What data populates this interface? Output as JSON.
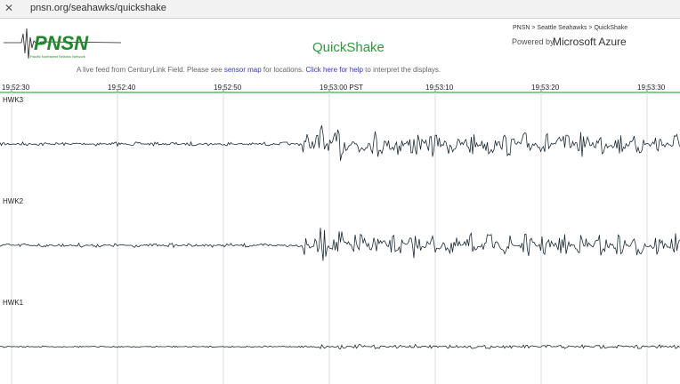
{
  "browser": {
    "url": "pnsn.org/seahawks/quickshake"
  },
  "header": {
    "logo": "PNSN",
    "logo_subtitle": "Pacific Northwest Seismic Network",
    "title": "QuickShake",
    "breadcrumb": "PNSN > Seattle Seahawks > QuickShake",
    "powered_by": "Powered by",
    "sponsor": "Microsoft Azure"
  },
  "intro": {
    "text_1": "A live feed from CenturyLink Field. Please see ",
    "link_1": "sensor map",
    "text_2": " for locations. ",
    "link_2": "Click here for help",
    "text_3": " to interpret the displays."
  },
  "time_axis": [
    "19:52:30",
    "19:52:40",
    "19:52:50",
    "19:53:00 PST",
    "19:53:10",
    "19:53:20",
    "19:53:30"
  ],
  "channels": [
    "HWK3",
    "HWK2",
    "HWK1"
  ]
}
